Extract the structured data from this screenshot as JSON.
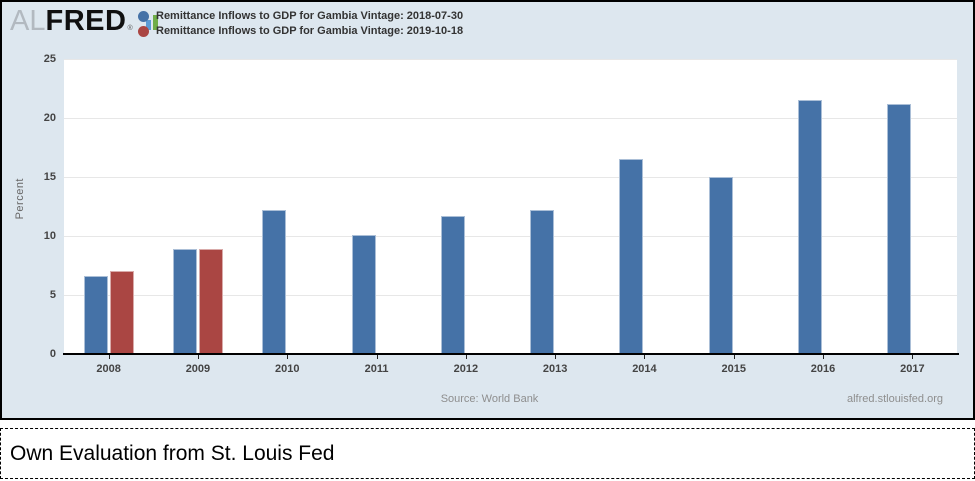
{
  "header": {
    "logo": {
      "al": "AL",
      "fred": "FRED",
      "reg": "®"
    }
  },
  "chart_data": {
    "type": "bar",
    "title": "",
    "xlabel": "",
    "ylabel": "Percent",
    "ylim": [
      0,
      25
    ],
    "yticks": [
      0,
      5,
      10,
      15,
      20,
      25
    ],
    "grid": true,
    "legend_position": "top-left",
    "categories": [
      "2008",
      "2009",
      "2010",
      "2011",
      "2012",
      "2013",
      "2014",
      "2015",
      "2016",
      "2017"
    ],
    "series": [
      {
        "name": "Remittance Inflows to GDP for Gambia Vintage: 2018-07-30",
        "color": "#4572a7",
        "values": [
          6.6,
          8.9,
          12.2,
          10.1,
          11.7,
          12.2,
          16.5,
          15.0,
          21.5,
          21.2
        ]
      },
      {
        "name": "Remittance Inflows to GDP for Gambia Vintage: 2019-10-18",
        "color": "#aa4643",
        "values": [
          7.0,
          8.9,
          null,
          null,
          null,
          null,
          null,
          null,
          null,
          null
        ]
      }
    ]
  },
  "footer_chart": {
    "source": "Source: World Bank",
    "site": "alfred.stlouisfed.org"
  },
  "caption": {
    "text": "Own Evaluation from St. Louis Fed"
  },
  "colors": {
    "card_background": "#dde7ef",
    "plot_background": "#ffffff",
    "gridline": "#e7e7e7",
    "axis": "#000000",
    "series_blue": "#4572a7",
    "series_red": "#aa4643",
    "logo_icon_blue": "#5b9bd5",
    "logo_icon_green": "#6fad49"
  }
}
